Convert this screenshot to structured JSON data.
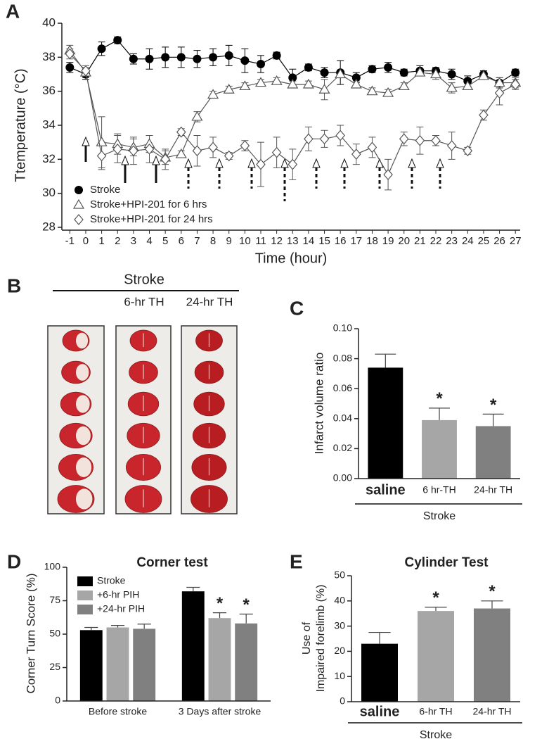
{
  "chart_data": [
    {
      "panel": "A",
      "type": "line",
      "ylabel": "Ttemperature (°C)",
      "xlabel": "Time (hour)",
      "x": [
        -1,
        0,
        1,
        2,
        3,
        4,
        5,
        6,
        7,
        8,
        9,
        10,
        11,
        12,
        13,
        14,
        15,
        16,
        17,
        18,
        19,
        20,
        21,
        22,
        23,
        24,
        25,
        26,
        27
      ],
      "xlim": [
        -1.5,
        27.3
      ],
      "xticks": [
        -1,
        0,
        1,
        2,
        3,
        4,
        5,
        6,
        7,
        8,
        9,
        10,
        11,
        12,
        13,
        14,
        15,
        16,
        17,
        18,
        19,
        20,
        21,
        22,
        23,
        24,
        25,
        26,
        27
      ],
      "ylim": [
        28,
        40
      ],
      "yticks": [
        28,
        30,
        32,
        34,
        36,
        38,
        40
      ],
      "series": [
        {
          "name": "Stroke",
          "color": "#000000",
          "marker": "circle",
          "values": [
            37.4,
            37.0,
            38.5,
            39.0,
            37.9,
            37.9,
            38.0,
            38.0,
            37.9,
            38.0,
            38.1,
            37.8,
            37.6,
            38.1,
            36.8,
            37.4,
            37.1,
            37.1,
            36.8,
            37.3,
            37.4,
            37.1,
            37.2,
            37.2,
            37.0,
            36.6,
            37.0,
            36.5,
            37.1
          ],
          "errors": [
            0.3,
            0.3,
            0.4,
            0.2,
            0.3,
            0.6,
            0.6,
            0.6,
            0.5,
            0.5,
            0.6,
            0.7,
            0.5,
            0.2,
            0.5,
            0.2,
            0.3,
            0.7,
            0.3,
            0.2,
            0.3,
            0.2,
            0.3,
            0.2,
            0.3,
            0.3,
            0.2,
            0.3,
            0.2
          ]
        },
        {
          "name": "Stroke+HPI-201 for 6 hrs",
          "color": "#555555",
          "marker": "triangle",
          "values": [
            38.4,
            37.1,
            33.0,
            32.9,
            32.7,
            32.9,
            32.1,
            32.3,
            34.5,
            35.8,
            36.1,
            36.3,
            36.5,
            36.6,
            36.4,
            36.4,
            36.1,
            37.0,
            36.4,
            36.0,
            35.9,
            36.3,
            37.1,
            37.0,
            36.2,
            36.3,
            36.9,
            36.5,
            36.5
          ],
          "errors": [
            0.3,
            0.3,
            1.5,
            0.6,
            0.5,
            0.5,
            0.4,
            0.2,
            0.3,
            0.2,
            0.2,
            0.2,
            0.2,
            0.2,
            0.2,
            0.2,
            0.6,
            0.2,
            0.2,
            0.2,
            0.2,
            0.2,
            0.2,
            0.3,
            0.3,
            0.2,
            0.2,
            0.3,
            0.3
          ]
        },
        {
          "name": "Stroke+HPI-201 for 24 hrs",
          "color": "#555555",
          "marker": "diamond",
          "values": [
            38.2,
            37.2,
            32.2,
            32.6,
            32.5,
            32.6,
            32.0,
            33.6,
            32.5,
            32.7,
            32.2,
            32.8,
            31.7,
            32.4,
            31.7,
            33.2,
            33.2,
            33.4,
            32.3,
            32.7,
            31.1,
            33.2,
            33.1,
            33.1,
            32.8,
            32.5,
            34.6,
            35.9,
            36.4
          ],
          "errors": [
            0.3,
            0.3,
            0.8,
            0.8,
            0.8,
            0.8,
            0.6,
            0.2,
            0.9,
            0.6,
            0.2,
            0.3,
            1.3,
            0.9,
            0.9,
            0.7,
            0.5,
            0.6,
            0.6,
            0.6,
            0.9,
            0.4,
            0.8,
            0.3,
            0.8,
            0.2,
            0.3,
            0.7,
            0.3
          ]
        }
      ]
    },
    {
      "panel": "C",
      "type": "bar",
      "ylabel": "Infarct volume ratio",
      "group_label": "Stroke",
      "categories": [
        "saline",
        "6 hr-TH",
        "24-hr TH"
      ],
      "values": [
        0.074,
        0.039,
        0.035
      ],
      "errors": [
        0.009,
        0.008,
        0.008
      ],
      "colors": [
        "#000000",
        "#a6a6a6",
        "#808080"
      ],
      "significance": [
        null,
        "*",
        "*"
      ],
      "ylim": [
        0,
        0.1
      ],
      "yticks": [
        {
          "value": 0,
          "label": "0.00"
        },
        {
          "value": 0.02,
          "label": "0.02"
        },
        {
          "value": 0.04,
          "label": "0.04"
        },
        {
          "value": 0.06,
          "label": "0.06"
        },
        {
          "value": 0.08,
          "label": "0.08"
        },
        {
          "value": 0.1,
          "label": "0.10"
        }
      ]
    },
    {
      "panel": "D",
      "type": "bar",
      "title": "Corner test",
      "ylabel": "Corner Turn Score (%)",
      "categories": [
        "Before stroke",
        "3 Days after stroke"
      ],
      "series": [
        {
          "name": "Stroke",
          "color": "#000000",
          "values": [
            53,
            82
          ],
          "errors": [
            2,
            3
          ],
          "significance": [
            null,
            null
          ]
        },
        {
          "name": "+6-hr PIH",
          "color": "#a6a6a6",
          "values": [
            55,
            62
          ],
          "errors": [
            1.5,
            4
          ],
          "significance": [
            null,
            "*"
          ]
        },
        {
          "name": "+24-hr PIH",
          "color": "#808080",
          "values": [
            54,
            58
          ],
          "errors": [
            3.5,
            7
          ],
          "significance": [
            null,
            "*"
          ]
        }
      ],
      "ylim": [
        0,
        100
      ],
      "yticks": [
        0,
        25,
        50,
        75,
        100
      ]
    },
    {
      "panel": "E",
      "type": "bar",
      "title": "Cylinder Test",
      "ylabel": [
        "Use of",
        "Impaired forelimb (%)"
      ],
      "group_label": "Stroke",
      "categories": [
        "saline",
        "6-hr TH",
        "24-hr TH"
      ],
      "values": [
        23,
        36,
        37
      ],
      "errors": [
        4.5,
        1.5,
        3
      ],
      "colors": [
        "#000000",
        "#a6a6a6",
        "#808080"
      ],
      "significance": [
        null,
        "*",
        "*"
      ],
      "ylim": [
        0,
        50
      ],
      "yticks": [
        0,
        10,
        20,
        30,
        40,
        50
      ]
    }
  ],
  "panel_b": {
    "panel": "B",
    "group_label": "Stroke",
    "columns": [
      "6-hr TH",
      "24-hr TH"
    ]
  }
}
